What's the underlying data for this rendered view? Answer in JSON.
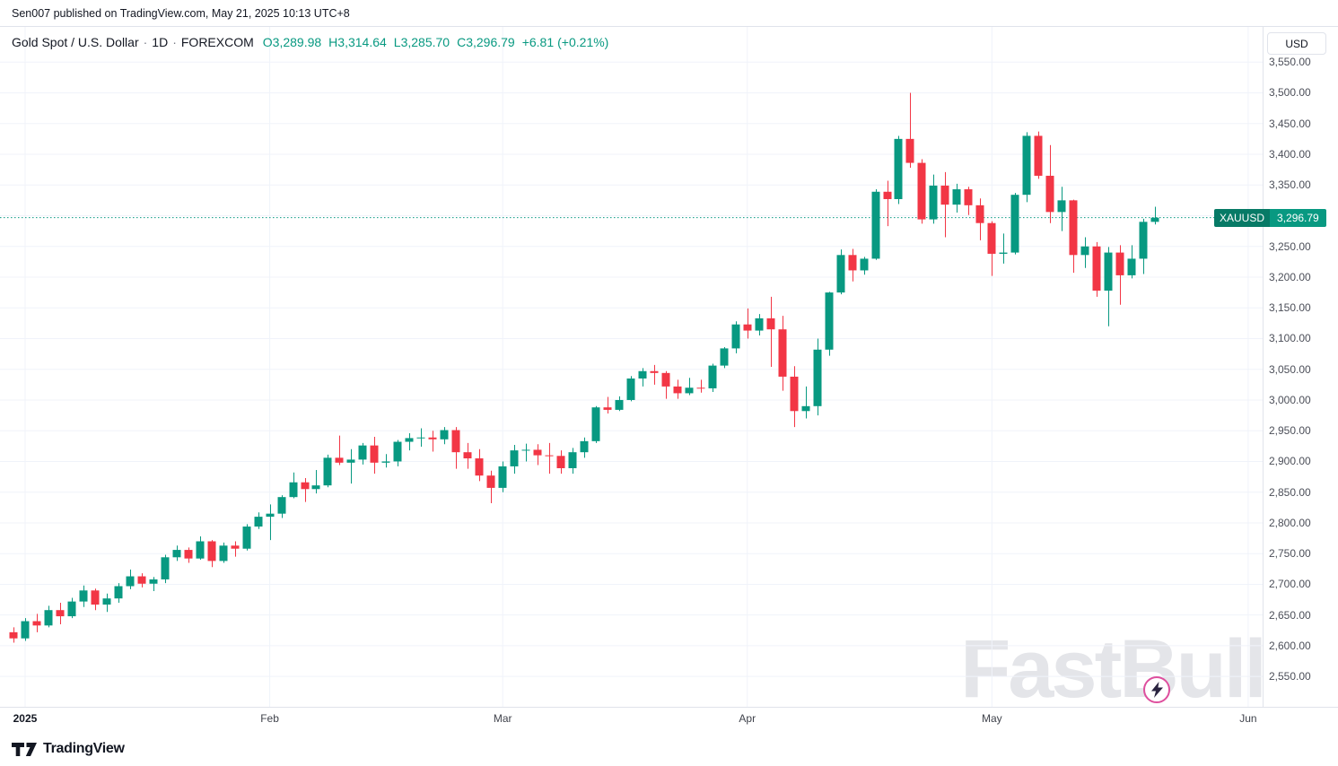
{
  "publish_bar": {
    "text": "Sen007 published on TradingView.com, May 21, 2025 10:13 UTC+8"
  },
  "header": {
    "symbol_title": "Gold Spot / U.S. Dollar",
    "separator": "·",
    "interval": "1D",
    "exchange": "FOREXCOM",
    "ohlc": {
      "o_label": "O",
      "o": "3,289.98",
      "h_label": "H",
      "h": "3,314.64",
      "l_label": "L",
      "l": "3,285.70",
      "c_label": "C",
      "c": "3,296.79",
      "change": "+6.81",
      "change_pct": "(+0.21%)"
    }
  },
  "price_scale": {
    "currency_button": "USD",
    "last_price_label": {
      "symbol": "XAUUSD",
      "price": "3,296.79"
    }
  },
  "footer": {
    "logo_text": "TradingView"
  },
  "watermark": {
    "text": "FastBull"
  },
  "colors": {
    "up": "#089981",
    "down": "#f23645",
    "grid": "#f0f3fa",
    "text_dark": "#131722",
    "text_muted": "#787b86"
  },
  "chart_data": {
    "type": "candlestick",
    "title": "Gold Spot / U.S. Dollar",
    "symbol": "XAUUSD",
    "exchange": "FOREXCOM",
    "timeframe": "1D",
    "last_close": 3296.79,
    "current_bar": {
      "open": 3289.98,
      "high": 3314.64,
      "low": 3285.7,
      "close": 3296.79,
      "change": 6.81,
      "change_pct": 0.21
    },
    "ylim": [
      2505,
      3600
    ],
    "grid": true,
    "price_ticks": [
      3550,
      3500,
      3450,
      3400,
      3350,
      3300,
      3250,
      3200,
      3150,
      3100,
      3050,
      3000,
      2950,
      2900,
      2850,
      2800,
      2750,
      2700,
      2650,
      2600,
      2550
    ],
    "x_ticks": [
      {
        "label": "2025",
        "index": 1
      },
      {
        "label": "Feb",
        "index": 22
      },
      {
        "label": "Mar",
        "index": 42
      },
      {
        "label": "Apr",
        "index": 63
      },
      {
        "label": "May",
        "index": 84
      },
      {
        "label": "Jun",
        "index": 106
      }
    ],
    "candles": [
      [
        "2025-01-02",
        2622,
        2630,
        2605,
        2612
      ],
      [
        "2025-01-03",
        2612,
        2645,
        2608,
        2640
      ],
      [
        "2025-01-06",
        2640,
        2652,
        2622,
        2633
      ],
      [
        "2025-01-07",
        2633,
        2665,
        2630,
        2658
      ],
      [
        "2025-01-08",
        2658,
        2670,
        2635,
        2648
      ],
      [
        "2025-01-09",
        2648,
        2678,
        2645,
        2672
      ],
      [
        "2025-01-10",
        2672,
        2698,
        2663,
        2690
      ],
      [
        "2025-01-13",
        2690,
        2693,
        2658,
        2667
      ],
      [
        "2025-01-14",
        2667,
        2685,
        2655,
        2677
      ],
      [
        "2025-01-15",
        2677,
        2702,
        2670,
        2697
      ],
      [
        "2025-01-16",
        2697,
        2724,
        2692,
        2713
      ],
      [
        "2025-01-17",
        2713,
        2718,
        2695,
        2701
      ],
      [
        "2025-01-20",
        2701,
        2712,
        2689,
        2708
      ],
      [
        "2025-01-21",
        2708,
        2748,
        2702,
        2744
      ],
      [
        "2025-01-22",
        2744,
        2763,
        2738,
        2756
      ],
      [
        "2025-01-23",
        2756,
        2760,
        2735,
        2742
      ],
      [
        "2025-01-24",
        2742,
        2778,
        2740,
        2770
      ],
      [
        "2025-01-27",
        2770,
        2772,
        2728,
        2738
      ],
      [
        "2025-01-28",
        2738,
        2768,
        2735,
        2763
      ],
      [
        "2025-01-29",
        2763,
        2770,
        2745,
        2758
      ],
      [
        "2025-01-30",
        2758,
        2798,
        2755,
        2794
      ],
      [
        "2025-01-31",
        2794,
        2817,
        2790,
        2810
      ],
      [
        "2025-02-03",
        2810,
        2830,
        2772,
        2815
      ],
      [
        "2025-02-04",
        2815,
        2845,
        2808,
        2842
      ],
      [
        "2025-02-05",
        2842,
        2882,
        2840,
        2866
      ],
      [
        "2025-02-06",
        2866,
        2873,
        2834,
        2855
      ],
      [
        "2025-02-07",
        2855,
        2886,
        2848,
        2861
      ],
      [
        "2025-02-10",
        2861,
        2911,
        2858,
        2906
      ],
      [
        "2025-02-11",
        2906,
        2942,
        2894,
        2898
      ],
      [
        "2025-02-12",
        2898,
        2920,
        2864,
        2903
      ],
      [
        "2025-02-13",
        2903,
        2930,
        2895,
        2926
      ],
      [
        "2025-02-14",
        2926,
        2940,
        2880,
        2898
      ],
      [
        "2025-02-17",
        2898,
        2912,
        2890,
        2900
      ],
      [
        "2025-02-18",
        2900,
        2935,
        2892,
        2932
      ],
      [
        "2025-02-19",
        2932,
        2946,
        2918,
        2938
      ],
      [
        "2025-02-20",
        2938,
        2954,
        2924,
        2939
      ],
      [
        "2025-02-21",
        2939,
        2950,
        2916,
        2936
      ],
      [
        "2025-02-24",
        2936,
        2956,
        2928,
        2951
      ],
      [
        "2025-02-25",
        2951,
        2956,
        2888,
        2915
      ],
      [
        "2025-02-26",
        2915,
        2930,
        2888,
        2905
      ],
      [
        "2025-02-27",
        2905,
        2920,
        2868,
        2877
      ],
      [
        "2025-02-28",
        2877,
        2885,
        2832,
        2857
      ],
      [
        "2025-03-03",
        2857,
        2900,
        2850,
        2892
      ],
      [
        "2025-03-04",
        2892,
        2927,
        2880,
        2918
      ],
      [
        "2025-03-05",
        2918,
        2929,
        2900,
        2919
      ],
      [
        "2025-03-06",
        2919,
        2928,
        2894,
        2910
      ],
      [
        "2025-03-07",
        2910,
        2930,
        2880,
        2909
      ],
      [
        "2025-03-10",
        2909,
        2918,
        2880,
        2889
      ],
      [
        "2025-03-11",
        2889,
        2922,
        2880,
        2915
      ],
      [
        "2025-03-12",
        2915,
        2939,
        2906,
        2933
      ],
      [
        "2025-03-13",
        2933,
        2990,
        2930,
        2988
      ],
      [
        "2025-03-14",
        2988,
        3005,
        2978,
        2984
      ],
      [
        "2025-03-17",
        2984,
        3006,
        2982,
        3000
      ],
      [
        "2025-03-18",
        3000,
        3039,
        2998,
        3035
      ],
      [
        "2025-03-19",
        3035,
        3052,
        3022,
        3047
      ],
      [
        "2025-03-20",
        3047,
        3057,
        3025,
        3044
      ],
      [
        "2025-03-21",
        3044,
        3047,
        3002,
        3022
      ],
      [
        "2025-03-24",
        3022,
        3033,
        3002,
        3011
      ],
      [
        "2025-03-25",
        3011,
        3036,
        3008,
        3020
      ],
      [
        "2025-03-26",
        3020,
        3033,
        3012,
        3019
      ],
      [
        "2025-03-27",
        3019,
        3059,
        3013,
        3056
      ],
      [
        "2025-03-28",
        3056,
        3086,
        3052,
        3084
      ],
      [
        "2025-03-31",
        3084,
        3128,
        3076,
        3123
      ],
      [
        "2025-04-01",
        3123,
        3149,
        3100,
        3113
      ],
      [
        "2025-04-02",
        3113,
        3140,
        3105,
        3133
      ],
      [
        "2025-04-03",
        3133,
        3168,
        3054,
        3115
      ],
      [
        "2025-04-04",
        3115,
        3137,
        3015,
        3038
      ],
      [
        "2025-04-07",
        3038,
        3055,
        2956,
        2982
      ],
      [
        "2025-04-08",
        2982,
        3022,
        2970,
        2990
      ],
      [
        "2025-04-09",
        2990,
        3100,
        2975,
        3082
      ],
      [
        "2025-04-10",
        3082,
        3176,
        3072,
        3175
      ],
      [
        "2025-04-11",
        3175,
        3245,
        3172,
        3236
      ],
      [
        "2025-04-14",
        3236,
        3246,
        3193,
        3211
      ],
      [
        "2025-04-15",
        3211,
        3233,
        3204,
        3230
      ],
      [
        "2025-04-16",
        3230,
        3343,
        3228,
        3339
      ],
      [
        "2025-04-17",
        3339,
        3357,
        3283,
        3327
      ],
      [
        "2025-04-21",
        3327,
        3430,
        3319,
        3425
      ],
      [
        "2025-04-22",
        3425,
        3500,
        3378,
        3386
      ],
      [
        "2025-04-23",
        3386,
        3392,
        3287,
        3294
      ],
      [
        "2025-04-24",
        3294,
        3367,
        3287,
        3349
      ],
      [
        "2025-04-25",
        3349,
        3371,
        3265,
        3318
      ],
      [
        "2025-04-28",
        3318,
        3352,
        3305,
        3343
      ],
      [
        "2025-04-29",
        3343,
        3347,
        3301,
        3317
      ],
      [
        "2025-04-30",
        3317,
        3328,
        3260,
        3288
      ],
      [
        "2025-05-01",
        3288,
        3291,
        3202,
        3238
      ],
      [
        "2025-05-02",
        3238,
        3271,
        3222,
        3240
      ],
      [
        "2025-05-05",
        3240,
        3337,
        3237,
        3334
      ],
      [
        "2025-05-06",
        3334,
        3436,
        3322,
        3430
      ],
      [
        "2025-05-07",
        3430,
        3437,
        3360,
        3365
      ],
      [
        "2025-05-08",
        3365,
        3415,
        3288,
        3306
      ],
      [
        "2025-05-09",
        3306,
        3347,
        3275,
        3325
      ],
      [
        "2025-05-12",
        3325,
        3326,
        3207,
        3236
      ],
      [
        "2025-05-13",
        3236,
        3265,
        3215,
        3250
      ],
      [
        "2025-05-14",
        3250,
        3257,
        3168,
        3178
      ],
      [
        "2025-05-15",
        3178,
        3249,
        3120,
        3240
      ],
      [
        "2025-05-16",
        3240,
        3252,
        3155,
        3203
      ],
      [
        "2025-05-19",
        3203,
        3252,
        3198,
        3230
      ],
      [
        "2025-05-20",
        3230,
        3295,
        3205,
        3290
      ],
      [
        "2025-05-21",
        3289.98,
        3314.64,
        3285.7,
        3296.79
      ]
    ]
  }
}
